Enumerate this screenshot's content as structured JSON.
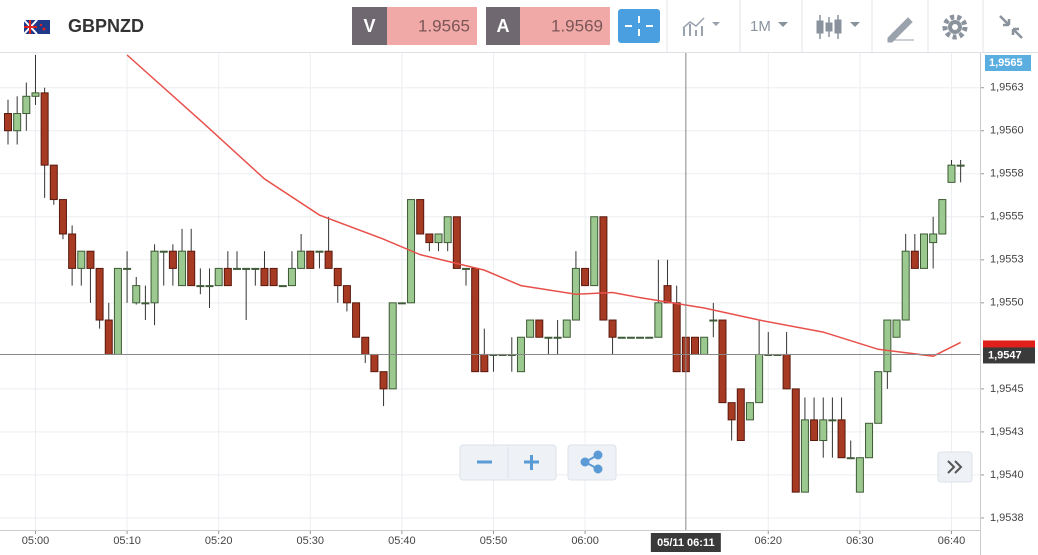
{
  "toolbar": {
    "symbol": "GBPNZD",
    "sell_label": "V",
    "sell_price": "1.9565",
    "buy_label": "A",
    "buy_price": "1.9569",
    "timeframe": "1M"
  },
  "chart_data": {
    "type": "candlestick",
    "categories": [
      null,
      null,
      null,
      "05:00",
      null,
      null,
      null,
      null,
      null,
      null,
      null,
      null,
      null,
      "05:10",
      null,
      null,
      null,
      null,
      null,
      null,
      null,
      null,
      null,
      "05:20",
      null,
      null,
      null,
      null,
      null,
      null,
      null,
      null,
      null,
      "05:30",
      null,
      null,
      null,
      null,
      null,
      null,
      null,
      null,
      null,
      "05:40",
      null,
      null,
      null,
      null,
      null,
      null,
      null,
      null,
      null,
      "05:50",
      null,
      null,
      null,
      null,
      null,
      null,
      null,
      null,
      null,
      "06:00",
      null,
      null,
      null,
      null,
      null,
      null,
      null,
      null,
      null,
      null,
      null,
      null,
      null,
      null,
      null,
      null,
      null,
      null,
      null,
      "06:20",
      null,
      null,
      null,
      null,
      null,
      null,
      null,
      null,
      null,
      "06:30",
      null,
      null,
      null,
      null,
      null,
      null,
      null,
      null,
      null,
      "06:40",
      null
    ],
    "open": [
      1.9561,
      1.956,
      1.9561,
      1.9562,
      1.95622,
      1.9558,
      1.9556,
      1.9554,
      1.9552,
      1.9553,
      1.9552,
      1.9549,
      1.9547,
      1.9552,
      1.955,
      1.955,
      1.955,
      1.9553,
      1.9553,
      1.9551,
      1.9553,
      1.9551,
      1.9551,
      1.9551,
      1.9552,
      1.9552,
      1.9552,
      1.9552,
      1.9552,
      1.9552,
      1.9551,
      1.9551,
      1.9552,
      1.9553,
      1.9553,
      1.9553,
      1.9552,
      1.9551,
      1.955,
      1.9548,
      1.9547,
      1.9546,
      1.9545,
      1.955,
      1.955,
      1.9556,
      1.9554,
      1.95535,
      1.95535,
      1.9555,
      1.9552,
      1.9552,
      1.9547,
      1.9547,
      1.9547,
      1.9547,
      1.9546,
      1.9548,
      1.9549,
      1.9548,
      1.9548,
      1.9548,
      1.9549,
      1.9552,
      1.9551,
      1.9555,
      1.9549,
      1.9548,
      1.9548,
      1.9548,
      1.9548,
      1.9548,
      1.9551,
      1.955,
      1.9548,
      1.9548,
      1.9547,
      1.9549,
      1.9549,
      1.95442,
      1.9545,
      1.95432,
      1.95442,
      1.9547,
      1.9547,
      1.9547,
      1.9545,
      1.9539,
      1.95432,
      1.9542,
      1.95432,
      1.95432,
      1.9541,
      1.9539,
      1.9541,
      1.9543,
      1.9546,
      1.9548,
      1.9549,
      1.9553,
      1.9552,
      1.95535,
      1.9554,
      1.9557,
      1.9558
    ],
    "high": [
      1.95618,
      1.9562,
      1.95628,
      1.95644,
      1.95625,
      1.9558,
      1.9556,
      1.95545,
      1.9553,
      1.9553,
      1.9552,
      1.955,
      1.9552,
      1.9553,
      1.95515,
      1.9551,
      1.95534,
      1.9553,
      1.95534,
      1.95543,
      1.95543,
      1.9552,
      1.9552,
      1.9552,
      1.9553,
      1.9553,
      1.9552,
      1.9552,
      1.9553,
      1.9552,
      1.9551,
      1.9553,
      1.9554,
      1.9553,
      1.9553,
      1.9555,
      1.9552,
      1.9551,
      1.955,
      1.9548,
      1.9547,
      1.9546,
      1.955,
      1.955,
      1.9556,
      1.9556,
      1.9554,
      1.9554,
      1.9555,
      1.9555,
      1.9552,
      1.9552,
      1.95485,
      1.9547,
      1.9547,
      1.9548,
      1.9548,
      1.9549,
      1.9549,
      1.9548,
      1.9549,
      1.9549,
      1.9553,
      1.9552,
      1.9555,
      1.9555,
      1.9549,
      1.9548,
      1.9548,
      1.9548,
      1.9548,
      1.95525,
      1.95525,
      1.9551,
      1.9548,
      1.9548,
      1.9548,
      1.955,
      1.9549,
      1.95442,
      1.9545,
      1.95442,
      1.9549,
      1.95483,
      1.9547,
      1.95483,
      1.9545,
      1.95445,
      1.95445,
      1.95445,
      1.95445,
      1.95445,
      1.9542,
      1.9541,
      1.9543,
      1.9546,
      1.9549,
      1.9549,
      1.9554,
      1.9554,
      1.9554,
      1.9555,
      1.9556,
      1.95583,
      1.95583
    ],
    "low": [
      1.95592,
      1.95592,
      1.956,
      1.95615,
      1.95561,
      1.95557,
      1.95537,
      1.9551,
      1.9551,
      1.955,
      1.95485,
      1.9547,
      1.9547,
      1.955,
      1.95499,
      1.9549,
      1.95487,
      1.9551,
      1.9551,
      1.9551,
      1.9551,
      1.95505,
      1.95497,
      1.9551,
      1.9551,
      1.9552,
      1.9549,
      1.9551,
      1.9551,
      1.9551,
      1.9551,
      1.9551,
      1.9552,
      1.9552,
      1.9552,
      1.9552,
      1.955,
      1.95495,
      1.9548,
      1.95465,
      1.9546,
      1.9544,
      1.9545,
      1.955,
      1.955,
      1.9554,
      1.9553,
      1.9553,
      1.9553,
      1.9552,
      1.9551,
      1.9546,
      1.9546,
      1.9546,
      1.9547,
      1.9546,
      1.9546,
      1.9548,
      1.9548,
      1.9547,
      1.9547,
      1.9548,
      1.9549,
      1.9551,
      1.9551,
      1.9549,
      1.9547,
      1.9548,
      1.9548,
      1.9548,
      1.9548,
      1.9548,
      1.955,
      1.9546,
      1.9546,
      1.9547,
      1.9547,
      1.9548,
      1.95442,
      1.9542,
      1.9542,
      1.95432,
      1.95442,
      1.9547,
      1.9547,
      1.9545,
      1.9539,
      1.9539,
      1.9542,
      1.9541,
      1.9541,
      1.9541,
      1.9541,
      1.9539,
      1.9541,
      1.9543,
      1.9545,
      1.9548,
      1.9549,
      1.9552,
      1.9552,
      1.9552,
      1.9554,
      1.9557,
      1.9557
    ],
    "close": [
      1.956,
      1.9561,
      1.9562,
      1.95622,
      1.9558,
      1.9556,
      1.9554,
      1.9552,
      1.9553,
      1.9552,
      1.9549,
      1.9547,
      1.9552,
      1.9552,
      1.9551,
      1.955,
      1.9553,
      1.9553,
      1.9552,
      1.9553,
      1.9551,
      1.9551,
      1.9551,
      1.9552,
      1.9551,
      1.9552,
      1.9552,
      1.9552,
      1.9551,
      1.9551,
      1.9551,
      1.9552,
      1.9553,
      1.9552,
      1.9553,
      1.9552,
      1.9551,
      1.955,
      1.9548,
      1.9547,
      1.9546,
      1.9545,
      1.955,
      1.955,
      1.9556,
      1.9554,
      1.95535,
      1.9554,
      1.9555,
      1.9552,
      1.9552,
      1.9546,
      1.9546,
      1.9547,
      1.9547,
      1.9547,
      1.9548,
      1.9549,
      1.9548,
      1.9548,
      1.9548,
      1.9549,
      1.9552,
      1.9551,
      1.9555,
      1.9549,
      1.9548,
      1.9548,
      1.9548,
      1.9548,
      1.9548,
      1.955,
      1.955,
      1.9546,
      1.9546,
      1.9547,
      1.9548,
      1.9549,
      1.95442,
      1.95432,
      1.9542,
      1.95442,
      1.9547,
      1.9547,
      1.9547,
      1.9545,
      1.9539,
      1.95432,
      1.9542,
      1.95432,
      1.95432,
      1.9541,
      1.9541,
      1.9541,
      1.9543,
      1.9546,
      1.9549,
      1.9549,
      1.9553,
      1.9552,
      1.9554,
      1.9554,
      1.9556,
      1.9558,
      1.9558
    ],
    "up_color": "#9cc98f",
    "down_color": "#a63a22",
    "moving_average": {
      "color": "#e8504a",
      "x": [
        13,
        21,
        28,
        34,
        41,
        45,
        52,
        56,
        62,
        66,
        69,
        76,
        82,
        89,
        95,
        101,
        104
      ],
      "values": [
        1.95644,
        1.95606,
        1.95572,
        1.95551,
        1.95537,
        1.95528,
        1.95519,
        1.9551,
        1.95505,
        1.95506,
        1.95503,
        1.95497,
        1.9549,
        1.95483,
        1.95473,
        1.95469,
        1.95477
      ]
    },
    "ylim": [
      1.95368,
      1.95644
    ],
    "yticks": [
      {
        "value": 1.95375,
        "label": "1,9538"
      },
      {
        "value": 1.954,
        "label": "1,9540"
      },
      {
        "value": 1.95425,
        "label": "1,9543"
      },
      {
        "value": 1.9545,
        "label": "1,9545"
      },
      {
        "value": 1.955,
        "label": "1,9550"
      },
      {
        "value": 1.95525,
        "label": "1,9553"
      },
      {
        "value": 1.9555,
        "label": "1,9555"
      },
      {
        "value": 1.95575,
        "label": "1,9558"
      },
      {
        "value": 1.956,
        "label": "1,9560"
      },
      {
        "value": 1.95625,
        "label": "1,9563"
      }
    ],
    "grid": true,
    "last_price_label": "1,9565",
    "crosshair": {
      "x": 74,
      "x_label": "05/11 06:11",
      "y": {
        "value": 1.9547,
        "label": "1,9547"
      }
    }
  }
}
